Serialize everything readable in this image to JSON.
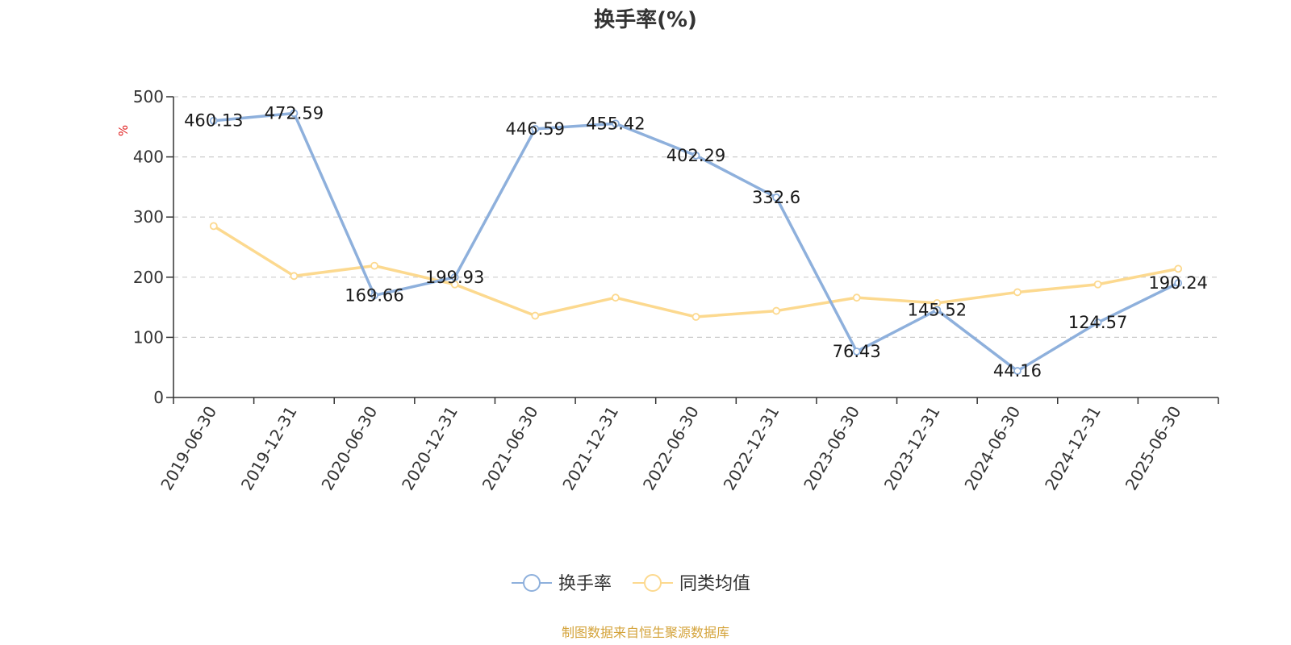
{
  "chart_data": {
    "type": "line",
    "title": "换手率(%)",
    "ylabel": "%",
    "ylim": [
      0,
      500
    ],
    "yticks": [
      0,
      100,
      200,
      300,
      400,
      500
    ],
    "grid": true,
    "legend_position": "bottom-center",
    "categories": [
      "2019-06-30",
      "2019-12-31",
      "2020-06-30",
      "2020-12-31",
      "2021-06-30",
      "2021-12-31",
      "2022-06-30",
      "2022-12-31",
      "2023-06-30",
      "2023-12-31",
      "2024-06-30",
      "2024-12-31",
      "2025-06-30"
    ],
    "series": [
      {
        "name": "换手率",
        "color": "#8eb0dc",
        "values": [
          460.13,
          472.59,
          169.66,
          199.93,
          446.59,
          455.42,
          402.29,
          332.6,
          76.43,
          145.52,
          44.16,
          124.57,
          190.24
        ],
        "data_labels": [
          "460.13",
          "472.59",
          "169.66",
          "199.93",
          "446.59",
          "455.42",
          "402.29",
          "332.6",
          "76.43",
          "145.52",
          "44.16",
          "124.57",
          "190.24"
        ]
      },
      {
        "name": "同类均值",
        "color": "#fcd98f",
        "values": [
          285,
          202,
          219,
          188,
          136,
          166,
          134,
          144,
          166,
          157,
          175,
          188,
          214
        ]
      }
    ]
  },
  "source": {
    "text": "制图数据来自恒生聚源数据库",
    "color": "#d4a33a"
  }
}
